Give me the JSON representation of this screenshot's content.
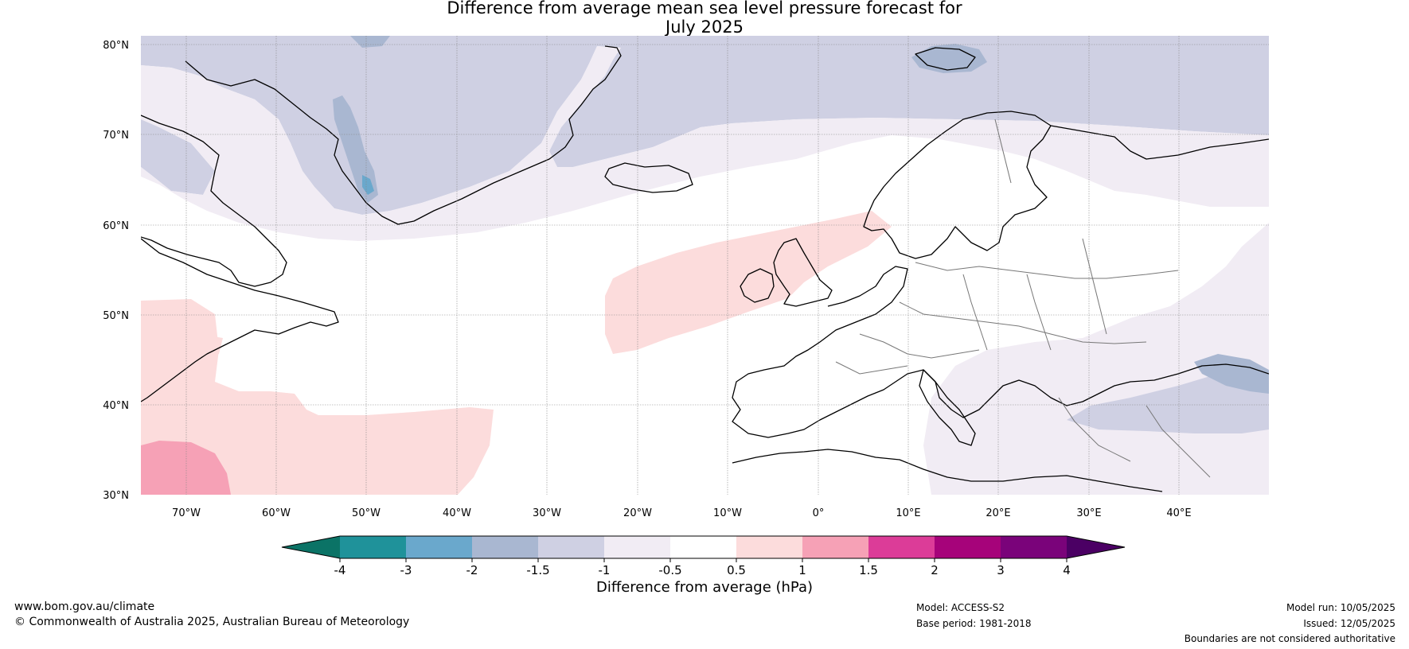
{
  "title": {
    "line1": "Difference from average mean sea level pressure forecast for",
    "line2": "July 2025"
  },
  "map": {
    "lat_labels": [
      "80°N",
      "70°N",
      "60°N",
      "50°N",
      "40°N",
      "30°N"
    ],
    "lon_labels": [
      "70°W",
      "60°W",
      "50°W",
      "40°W",
      "30°W",
      "20°W",
      "10°W",
      "0°",
      "10°E",
      "20°E",
      "30°E",
      "40°E"
    ],
    "extent": {
      "lon": [
        -75,
        50
      ],
      "lat": [
        30,
        81
      ]
    }
  },
  "colorbar": {
    "label": "Difference from average (hPa)",
    "ticks": [
      "-4",
      "-3",
      "-2",
      "-1.5",
      "-1",
      "-0.5",
      "0.5",
      "1",
      "1.5",
      "2",
      "3",
      "4"
    ],
    "colors": [
      "#0b7366",
      "#1f929a",
      "#6aa8cc",
      "#a9b7d1",
      "#cfd0e3",
      "#f1ecf4",
      "#ffffff",
      "#fcdcdc",
      "#f6a1b6",
      "#dc3c98",
      "#a6037a",
      "#7a037a",
      "#4b0064"
    ]
  },
  "footer": {
    "website": "www.bom.gov.au/climate",
    "copyright": "© Commonwealth of Australia 2025, Australian Bureau of Meteorology",
    "model": "Model: ACCESS-S2",
    "base_period": "Base period: 1981-2018",
    "model_run": "Model run: 10/05/2025",
    "issued": "Issued: 12/05/2025",
    "disclaimer": "Boundaries are not considered authoritative"
  }
}
